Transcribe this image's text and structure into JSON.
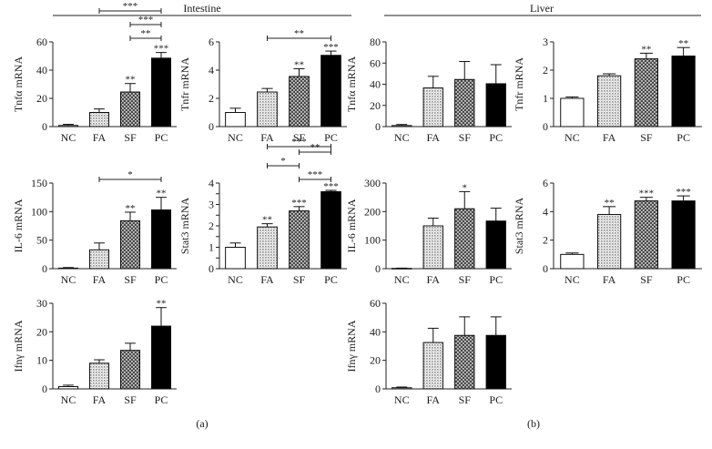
{
  "figure": {
    "panel_a_title": "Intestine",
    "panel_b_title": "Liver",
    "label_a": "(a)",
    "label_b": "(b)"
  },
  "chart_data": [
    {
      "type": "bar",
      "title": "",
      "ylabel": "Tnfα mRNA",
      "categories": [
        "NC",
        "FA",
        "SF",
        "PC"
      ],
      "values": [
        0.8,
        10,
        24.5,
        48.5
      ],
      "errors": [
        0.8,
        2.5,
        6,
        4
      ],
      "ylim": [
        0,
        60
      ],
      "yticks": [
        0,
        20,
        40,
        60
      ],
      "sig": [
        "",
        "",
        "**",
        "***"
      ],
      "brackets": [
        {
          "from": "FA",
          "to": "PC",
          "label": "***"
        },
        {
          "from": "SF",
          "to": "PC",
          "label": "***"
        },
        {
          "from": "SF",
          "to": "PC",
          "label": "**"
        }
      ]
    },
    {
      "type": "bar",
      "title": "",
      "ylabel": "Tnfr mRNA",
      "categories": [
        "NC",
        "FA",
        "SF",
        "PC"
      ],
      "values": [
        1.0,
        2.45,
        3.55,
        5.05
      ],
      "errors": [
        0.3,
        0.25,
        0.55,
        0.3
      ],
      "ylim": [
        0,
        6
      ],
      "yticks": [
        0,
        2,
        4,
        6
      ],
      "sig": [
        "",
        "",
        "**",
        "***"
      ],
      "brackets": [
        {
          "from": "FA",
          "to": "PC",
          "label": "**"
        }
      ]
    },
    {
      "type": "bar",
      "title": "",
      "ylabel": "IL-6 mRNA",
      "categories": [
        "NC",
        "FA",
        "SF",
        "PC"
      ],
      "values": [
        1,
        33,
        84,
        103
      ],
      "errors": [
        1,
        12,
        15,
        22
      ],
      "ylim": [
        0,
        150
      ],
      "yticks": [
        0,
        50,
        100,
        150
      ],
      "sig": [
        "",
        "",
        "**",
        "**"
      ],
      "brackets": [
        {
          "from": "FA",
          "to": "PC",
          "label": "*"
        }
      ]
    },
    {
      "type": "bar",
      "title": "",
      "ylabel": "Stat3 mRNA",
      "categories": [
        "NC",
        "FA",
        "SF",
        "PC"
      ],
      "values": [
        1.0,
        1.95,
        2.7,
        3.6
      ],
      "errors": [
        0.2,
        0.15,
        0.2,
        0.06
      ],
      "ylim": [
        0,
        4
      ],
      "yticks": [
        0,
        0.5,
        1,
        1.5,
        2,
        2.5,
        3,
        3.5,
        4
      ],
      "ytick_labels": [
        "0",
        "",
        "1",
        "",
        "2",
        "",
        "3",
        "",
        "4"
      ],
      "sig": [
        "",
        "**",
        "***",
        "***"
      ],
      "brackets": [
        {
          "from": "FA",
          "to": "PC",
          "label": "***"
        },
        {
          "from": "SF",
          "to": "PC",
          "label": "**"
        },
        {
          "from": "FA",
          "to": "SF",
          "label": "*"
        },
        {
          "from": "SF",
          "to": "PC",
          "label": "***"
        }
      ]
    },
    {
      "type": "bar",
      "title": "",
      "ylabel": "Ifnγ mRNA",
      "categories": [
        "NC",
        "FA",
        "SF",
        "PC"
      ],
      "values": [
        0.8,
        9,
        13.5,
        22
      ],
      "errors": [
        0.5,
        1.2,
        2.5,
        6.5
      ],
      "ylim": [
        0,
        30
      ],
      "yticks": [
        0,
        10,
        20,
        30
      ],
      "sig": [
        "",
        "",
        "",
        "**"
      ],
      "brackets": []
    },
    {
      "type": "bar",
      "title": "",
      "ylabel": "Tnfα mRNA",
      "categories": [
        "NC",
        "FA",
        "SF",
        "PC"
      ],
      "values": [
        1,
        36.5,
        44.5,
        40.5
      ],
      "errors": [
        1,
        11,
        17,
        18
      ],
      "ylim": [
        0,
        80
      ],
      "yticks": [
        0,
        20,
        40,
        60,
        80
      ],
      "sig": [
        "",
        "",
        "",
        ""
      ],
      "brackets": []
    },
    {
      "type": "bar",
      "title": "",
      "ylabel": "Tnfr mRNA",
      "categories": [
        "NC",
        "FA",
        "SF",
        "PC"
      ],
      "values": [
        1.0,
        1.8,
        2.4,
        2.5
      ],
      "errors": [
        0.05,
        0.07,
        0.2,
        0.3
      ],
      "ylim": [
        0,
        3
      ],
      "yticks": [
        0,
        1,
        2,
        3
      ],
      "sig": [
        "",
        "",
        "**",
        "**"
      ],
      "brackets": []
    },
    {
      "type": "bar",
      "title": "",
      "ylabel": "IL-6 mRNA",
      "categories": [
        "NC",
        "FA",
        "SF",
        "PC"
      ],
      "values": [
        1,
        150,
        210,
        167
      ],
      "errors": [
        1,
        27,
        60,
        45
      ],
      "ylim": [
        0,
        300
      ],
      "yticks": [
        0,
        100,
        200,
        300
      ],
      "sig": [
        "",
        "",
        "*",
        ""
      ],
      "brackets": []
    },
    {
      "type": "bar",
      "title": "",
      "ylabel": "Stat3 mRNA",
      "categories": [
        "NC",
        "FA",
        "SF",
        "PC"
      ],
      "values": [
        1.0,
        3.8,
        4.75,
        4.75
      ],
      "errors": [
        0.1,
        0.55,
        0.25,
        0.35
      ],
      "ylim": [
        0,
        6
      ],
      "yticks": [
        0,
        2,
        4,
        6
      ],
      "sig": [
        "",
        "**",
        "***",
        "***"
      ],
      "brackets": []
    },
    {
      "type": "bar",
      "title": "",
      "ylabel": "Ifnγ mRNA",
      "categories": [
        "NC",
        "FA",
        "SF",
        "PC"
      ],
      "values": [
        0.8,
        32.5,
        37.5,
        37.5
      ],
      "errors": [
        0.5,
        10,
        13,
        13
      ],
      "ylim": [
        0,
        60
      ],
      "yticks": [
        0,
        20,
        40,
        60
      ],
      "sig": [
        "",
        "",
        "",
        ""
      ],
      "brackets": []
    }
  ]
}
